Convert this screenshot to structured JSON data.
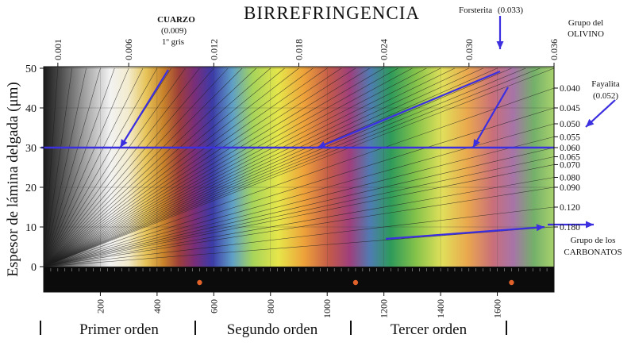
{
  "chart_data": {
    "type": "line",
    "title": "BIRREFRINGENCIA",
    "xlabel": "",
    "ylabel": "Espesor de lámina delgada (μm)",
    "xlim": [
      0,
      1800
    ],
    "ylim": [
      -5,
      50
    ],
    "x_ticks": [
      "200",
      "400",
      "600",
      "800",
      "1000",
      "1200",
      "1400",
      "1600"
    ],
    "y_ticks": [
      "0",
      "10",
      "20",
      "30",
      "40",
      "50"
    ],
    "birefringence_top_ticks": [
      "0.001",
      "0.006",
      "0.012",
      "0.018",
      "0.024",
      "0.030",
      "0.036"
    ],
    "birefringence_right_ticks": [
      "0.040",
      "0.045",
      "0.050",
      "0.055",
      "0.060",
      "0.065",
      "0.070",
      "0.080",
      "0.090",
      "0.120",
      "0.180"
    ],
    "order_labels": [
      "Primer orden",
      "Segundo orden",
      "Tercer orden"
    ],
    "series": [
      {
        "name": "CUARZO",
        "detail": "(0.009)",
        "extra": "1º gris",
        "birefringence": 0.009
      },
      {
        "name": "Forsterita",
        "detail": "(0.033)",
        "birefringence": 0.033
      },
      {
        "name": "Fayalita",
        "detail": "(0.052)",
        "birefringence": 0.052
      },
      {
        "name": "Grupo de los",
        "detail": "CARBONATOS",
        "birefringence": 0.18
      }
    ],
    "group_olivino": [
      "Grupo del",
      "OLIVINO"
    ],
    "thin_section_thickness": 30,
    "accent_color": "#3b2fe0",
    "grid": true
  }
}
